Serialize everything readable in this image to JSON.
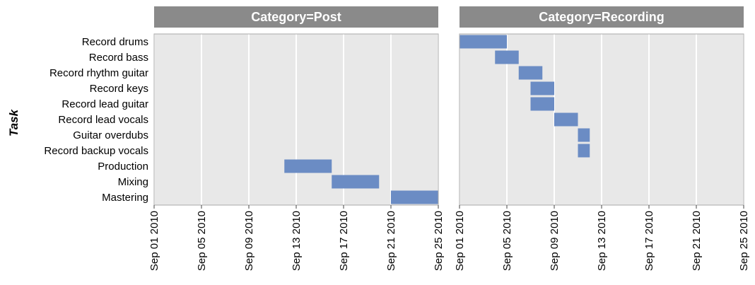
{
  "chart_data": {
    "type": "gantt",
    "ylabel": "Task",
    "xlabel": "",
    "facet_prefix": "Category=",
    "tasks": [
      "Record drums",
      "Record bass",
      "Record rhythm guitar",
      "Record keys",
      "Record lead guitar",
      "Record lead vocals",
      "Guitar overdubs",
      "Record backup vocals",
      "Production",
      "Mixing",
      "Mastering"
    ],
    "xlim": [
      "2010-09-01",
      "2010-09-25"
    ],
    "xticks": [
      "2010-09-01",
      "2010-09-05",
      "2010-09-09",
      "2010-09-13",
      "2010-09-17",
      "2010-09-21",
      "2010-09-25"
    ],
    "xtick_labels": [
      "Sep 01 2010",
      "Sep 05 2010",
      "Sep 09 2010",
      "Sep 13 2010",
      "Sep 17 2010",
      "Sep 21 2010",
      "Sep 25 2010"
    ],
    "grid": true,
    "colors": {
      "bar": "#6b8cc4",
      "panel": "#e8e8e8",
      "strip": "#8a8a8a",
      "grid": "#ffffff",
      "border": "#aaaaaa"
    },
    "panels": [
      {
        "category": "Post",
        "strip_label": "Category=Post",
        "bars": [
          {
            "task": "Production",
            "start": "2010-09-12",
            "end": "2010-09-16"
          },
          {
            "task": "Mixing",
            "start": "2010-09-16",
            "end": "2010-09-20"
          },
          {
            "task": "Mastering",
            "start": "2010-09-21",
            "end": "2010-09-25"
          }
        ]
      },
      {
        "category": "Recording",
        "strip_label": "Category=Recording",
        "bars": [
          {
            "task": "Record drums",
            "start": "2010-09-01",
            "end": "2010-09-05"
          },
          {
            "task": "Record bass",
            "start": "2010-09-04",
            "end": "2010-09-06"
          },
          {
            "task": "Record rhythm guitar",
            "start": "2010-09-06",
            "end": "2010-09-08"
          },
          {
            "task": "Record keys",
            "start": "2010-09-07",
            "end": "2010-09-09"
          },
          {
            "task": "Record lead guitar",
            "start": "2010-09-07",
            "end": "2010-09-09"
          },
          {
            "task": "Record lead vocals",
            "start": "2010-09-09",
            "end": "2010-09-11"
          },
          {
            "task": "Guitar overdubs",
            "start": "2010-09-11",
            "end": "2010-09-12"
          },
          {
            "task": "Record backup vocals",
            "start": "2010-09-11",
            "end": "2010-09-12"
          }
        ]
      }
    ]
  }
}
